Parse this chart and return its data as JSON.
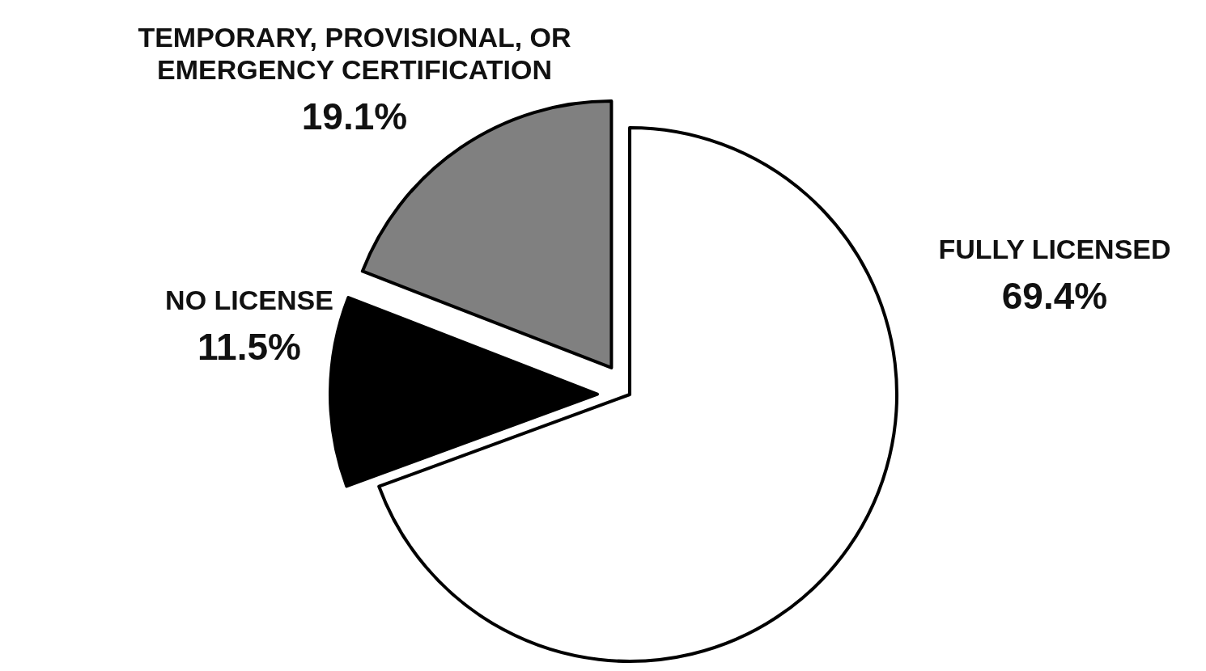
{
  "chart_data": {
    "type": "pie",
    "categories": [
      "FULLY LICENSED",
      "NO LICENSE",
      "TEMPORARY, PROVISIONAL, OR EMERGENCY CERTIFICATION"
    ],
    "values": [
      69.4,
      11.5,
      19.1
    ],
    "colors": [
      "#ffffff",
      "#000000",
      "#808080"
    ],
    "value_labels": [
      "69.4%",
      "11.5%",
      "19.1%"
    ],
    "legend": false
  }
}
